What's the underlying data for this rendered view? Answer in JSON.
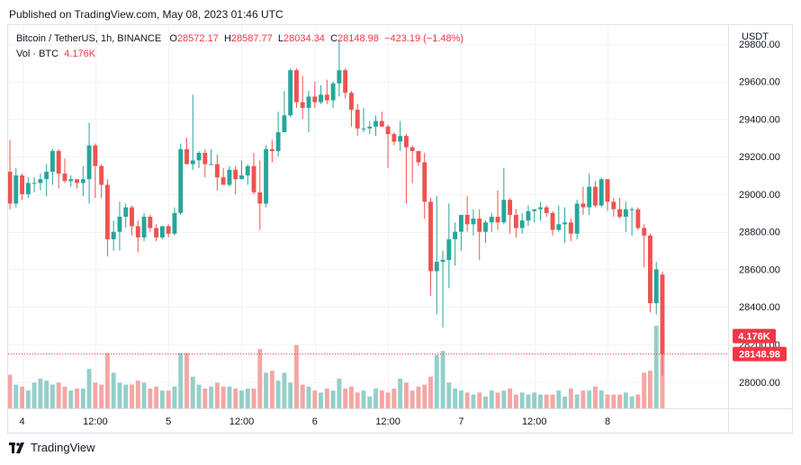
{
  "published": "Published on TradingView.com, May 08, 2023 01:46 UTC",
  "legend": {
    "symbol": "Bitcoin / TetherUS, 1h, BINANCE",
    "o_label": "O",
    "o": "28572.17",
    "h_label": "H",
    "h": "28587.77",
    "l_label": "L",
    "l": "28034.34",
    "c_label": "C",
    "c": "28148.98",
    "change": "−423.19 (−1.48%)",
    "vol_label": "Vol · BTC",
    "vol": "4.176K"
  },
  "footer": {
    "brand": "TradingView"
  },
  "colors": {
    "up": "#26a69a",
    "down": "#ef5350",
    "up_vol": "#94cfc9",
    "down_vol": "#f5a6a4",
    "badge": "#f23645"
  },
  "chart_data": {
    "type": "candlestick",
    "currency": "USDT",
    "ylim": [
      27860,
      29900
    ],
    "y_ticks": [
      "28000.00",
      "28200.00",
      "28400.00",
      "28600.00",
      "28800.00",
      "29000.00",
      "29200.00",
      "29400.00",
      "29600.00",
      "29800.00"
    ],
    "x_ticks": [
      {
        "label": "4",
        "index": 2
      },
      {
        "label": "12:00",
        "index": 14
      },
      {
        "label": "5",
        "index": 26
      },
      {
        "label": "12:00",
        "index": 38
      },
      {
        "label": "6",
        "index": 50
      },
      {
        "label": "12:00",
        "index": 62
      },
      {
        "label": "7",
        "index": 74
      },
      {
        "label": "12:00",
        "index": 86
      },
      {
        "label": "8",
        "index": 98
      }
    ],
    "last_price": "28148.98",
    "last_price_value": 28148.98,
    "last_volume": "4.176K",
    "candles": [
      [
        29120,
        29290,
        28920,
        28950,
        1700
      ],
      [
        28950,
        29140,
        28930,
        29100,
        1200
      ],
      [
        29100,
        29110,
        28970,
        29000,
        1100
      ],
      [
        29000,
        29090,
        28980,
        29060,
        900
      ],
      [
        29060,
        29090,
        29010,
        29060,
        1300
      ],
      [
        29060,
        29110,
        29020,
        29080,
        1500
      ],
      [
        29080,
        29160,
        28990,
        29120,
        1400
      ],
      [
        29120,
        29240,
        29050,
        29230,
        1200
      ],
      [
        29230,
        29240,
        29030,
        29110,
        1300
      ],
      [
        29110,
        29190,
        29060,
        29070,
        1100
      ],
      [
        29070,
        29100,
        29040,
        29080,
        900
      ],
      [
        29080,
        29080,
        29030,
        29060,
        1000
      ],
      [
        29060,
        29150,
        28990,
        29080,
        1000
      ],
      [
        29080,
        29380,
        28950,
        29260,
        2000
      ],
      [
        29260,
        29270,
        28980,
        29150,
        1300
      ],
      [
        29150,
        29160,
        28980,
        29050,
        1200
      ],
      [
        29050,
        29080,
        28670,
        28760,
        2800
      ],
      [
        28760,
        28860,
        28700,
        28800,
        1800
      ],
      [
        28800,
        28960,
        28700,
        28880,
        1300
      ],
      [
        28880,
        28950,
        28820,
        28930,
        1200
      ],
      [
        28930,
        28940,
        28780,
        28830,
        1200
      ],
      [
        28830,
        28860,
        28690,
        28770,
        1400
      ],
      [
        28770,
        28900,
        28750,
        28880,
        1300
      ],
      [
        28880,
        28890,
        28800,
        28820,
        1000
      ],
      [
        28820,
        28840,
        28750,
        28770,
        1100
      ],
      [
        28770,
        28830,
        28760,
        28830,
        900
      ],
      [
        28830,
        28840,
        28770,
        28790,
        900
      ],
      [
        28790,
        28930,
        28780,
        28900,
        1100
      ],
      [
        28900,
        29270,
        28890,
        29240,
        2800
      ],
      [
        29240,
        29300,
        29160,
        29160,
        2800
      ],
      [
        29160,
        29530,
        29130,
        29180,
        1600
      ],
      [
        29180,
        29230,
        29140,
        29220,
        1200
      ],
      [
        29220,
        29240,
        29090,
        29160,
        1000
      ],
      [
        29160,
        29240,
        29160,
        29160,
        1100
      ],
      [
        29160,
        29210,
        29020,
        29090,
        1300
      ],
      [
        29090,
        29140,
        29050,
        29050,
        1100
      ],
      [
        29050,
        29150,
        29040,
        29130,
        1100
      ],
      [
        29130,
        29150,
        29000,
        29080,
        1000
      ],
      [
        29080,
        29180,
        29080,
        29100,
        900
      ],
      [
        29100,
        29160,
        29050,
        29150,
        1000
      ],
      [
        29150,
        29220,
        29000,
        29010,
        1000
      ],
      [
        29010,
        29180,
        28810,
        28950,
        3000
      ],
      [
        28950,
        29260,
        28930,
        29240,
        1800
      ],
      [
        29240,
        29290,
        29170,
        29230,
        1900
      ],
      [
        29230,
        29440,
        29200,
        29330,
        1400
      ],
      [
        29330,
        29550,
        29330,
        29420,
        1800
      ],
      [
        29420,
        29670,
        29410,
        29660,
        1300
      ],
      [
        29660,
        29670,
        29460,
        29490,
        3200
      ],
      [
        29490,
        29630,
        29400,
        29460,
        1200
      ],
      [
        29460,
        29550,
        29330,
        29520,
        1100
      ],
      [
        29520,
        29600,
        29460,
        29490,
        900
      ],
      [
        29490,
        29580,
        29480,
        29530,
        800
      ],
      [
        29530,
        29610,
        29480,
        29500,
        1000
      ],
      [
        29500,
        29600,
        29460,
        29590,
        900
      ],
      [
        29590,
        29820,
        29520,
        29660,
        1500
      ],
      [
        29660,
        29670,
        29510,
        29540,
        1000
      ],
      [
        29540,
        29550,
        29360,
        29450,
        1100
      ],
      [
        29450,
        29480,
        29310,
        29350,
        800
      ],
      [
        29350,
        29460,
        29330,
        29350,
        900
      ],
      [
        29350,
        29390,
        29320,
        29360,
        600
      ],
      [
        29360,
        29420,
        29310,
        29390,
        1000
      ],
      [
        29390,
        29440,
        29360,
        29360,
        900
      ],
      [
        29360,
        29370,
        29140,
        29320,
        800
      ],
      [
        29320,
        29330,
        29260,
        29280,
        1000
      ],
      [
        29280,
        29390,
        29230,
        29310,
        1500
      ],
      [
        29310,
        29320,
        28950,
        29250,
        1300
      ],
      [
        29250,
        29260,
        29060,
        29230,
        900
      ],
      [
        29230,
        29230,
        29150,
        29170,
        1100
      ],
      [
        29170,
        29220,
        28870,
        28960,
        1200
      ],
      [
        28960,
        28980,
        28460,
        28590,
        1600
      ],
      [
        28590,
        28990,
        28360,
        28640,
        2700
      ],
      [
        28640,
        28700,
        28290,
        28650,
        2900
      ],
      [
        28650,
        28950,
        28500,
        28760,
        1300
      ],
      [
        28760,
        28850,
        28620,
        28800,
        1000
      ],
      [
        28800,
        28880,
        28700,
        28890,
        900
      ],
      [
        28890,
        28990,
        28800,
        28840,
        800
      ],
      [
        28840,
        28920,
        28780,
        28870,
        700
      ],
      [
        28870,
        28920,
        28650,
        28800,
        800
      ],
      [
        28800,
        28860,
        28740,
        28850,
        600
      ],
      [
        28850,
        28900,
        28800,
        28880,
        900
      ],
      [
        28880,
        29020,
        28810,
        28850,
        800
      ],
      [
        28850,
        29140,
        28840,
        28970,
        900
      ],
      [
        28970,
        28980,
        28790,
        28890,
        1000
      ],
      [
        28890,
        28920,
        28770,
        28820,
        700
      ],
      [
        28820,
        28900,
        28790,
        28860,
        800
      ],
      [
        28860,
        28940,
        28830,
        28910,
        700
      ],
      [
        28910,
        28920,
        28850,
        28920,
        800
      ],
      [
        28920,
        28960,
        28860,
        28930,
        700
      ],
      [
        28930,
        28940,
        28880,
        28900,
        700
      ],
      [
        28900,
        28910,
        28780,
        28810,
        700
      ],
      [
        28810,
        28940,
        28800,
        28840,
        900
      ],
      [
        28840,
        28930,
        28740,
        28850,
        600
      ],
      [
        28850,
        28870,
        28750,
        28790,
        1000
      ],
      [
        28790,
        28970,
        28760,
        28950,
        700
      ],
      [
        28950,
        29040,
        28890,
        28930,
        900
      ],
      [
        28930,
        29110,
        28890,
        29040,
        900
      ],
      [
        29040,
        29070,
        28930,
        28940,
        1100
      ],
      [
        28940,
        29090,
        28930,
        29080,
        900
      ],
      [
        29080,
        29080,
        28910,
        28960,
        700
      ],
      [
        28960,
        28980,
        28880,
        28920,
        700
      ],
      [
        28920,
        28980,
        28870,
        28880,
        700
      ],
      [
        28880,
        28960,
        28800,
        28920,
        800
      ],
      [
        28920,
        28930,
        28780,
        28920,
        600
      ],
      [
        28920,
        28930,
        28810,
        28820,
        700
      ],
      [
        28820,
        28840,
        28610,
        28780,
        1800
      ],
      [
        28780,
        28790,
        28370,
        28420,
        1900
      ],
      [
        28420,
        28640,
        28360,
        28600,
        4176
      ],
      [
        28572.17,
        28587.77,
        28034.34,
        28148.98,
        4176
      ]
    ]
  }
}
